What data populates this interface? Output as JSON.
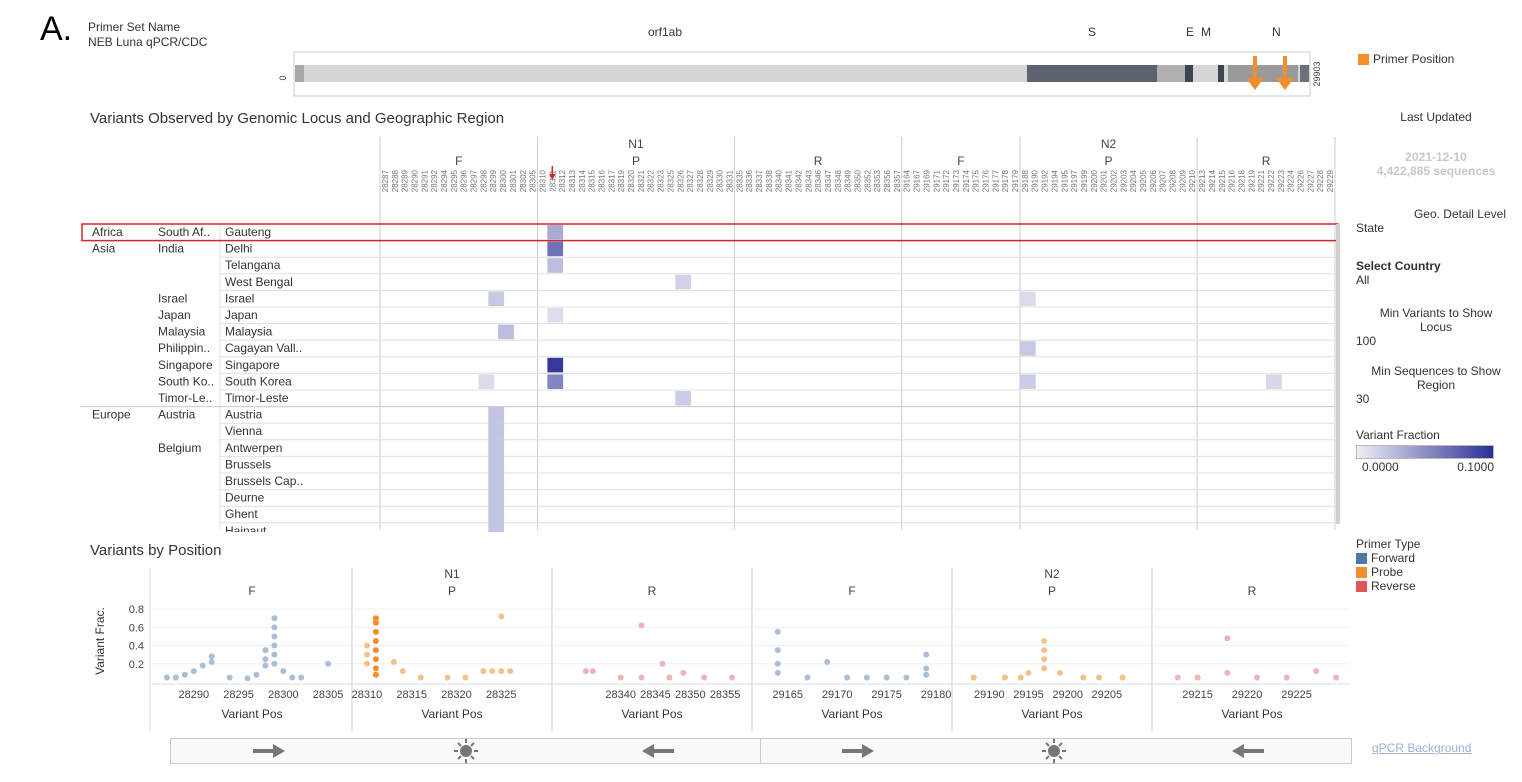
{
  "panel_label": "A.",
  "primer_set": {
    "label": "Primer Set Name",
    "value": "NEB Luna qPCR/CDC"
  },
  "genome": {
    "start": "0",
    "end": "29903",
    "genes": [
      "orf1ab",
      "S",
      "E",
      "M",
      "N"
    ],
    "legend": "Primer Position"
  },
  "heatmap": {
    "title": "Variants Observed by Genomic Locus and Geographic Region",
    "groups": [
      {
        "name": "N1",
        "parts": [
          "F",
          "P",
          "R"
        ]
      },
      {
        "name": "N2",
        "parts": [
          "F",
          "P",
          "R"
        ]
      }
    ],
    "positions": [
      "28287",
      "28288",
      "28289",
      "28290",
      "28291",
      "28292",
      "28294",
      "28295",
      "28296",
      "28297",
      "28298",
      "28299",
      "28300",
      "28301",
      "28302",
      "28305",
      "28310",
      "28311",
      "28312",
      "28313",
      "28314",
      "28315",
      "28316",
      "28317",
      "28319",
      "28320",
      "28321",
      "28322",
      "28323",
      "28325",
      "28326",
      "28327",
      "28328",
      "28329",
      "28330",
      "28331",
      "28335",
      "28336",
      "28337",
      "28338",
      "28340",
      "28341",
      "28342",
      "28343",
      "28346",
      "28347",
      "28348",
      "28349",
      "28350",
      "28352",
      "28353",
      "28356",
      "28357",
      "29164",
      "29167",
      "29169",
      "29171",
      "29172",
      "29173",
      "29174",
      "29175",
      "29176",
      "29177",
      "29178",
      "29179",
      "29188",
      "29190",
      "29192",
      "29194",
      "29195",
      "29197",
      "29199",
      "29200",
      "29201",
      "29202",
      "29203",
      "29204",
      "29205",
      "29206",
      "29207",
      "29208",
      "29209",
      "29210",
      "29213",
      "29214",
      "29215",
      "29216",
      "29218",
      "29219",
      "29221",
      "29222",
      "29223",
      "29224",
      "29226",
      "29227",
      "29228",
      "29229"
    ],
    "rows": [
      {
        "continent": "Africa",
        "country": "South Af..",
        "state": "Gauteng"
      },
      {
        "continent": "Asia",
        "country": "India",
        "state": "Delhi"
      },
      {
        "continent": "",
        "country": "",
        "state": "Telangana"
      },
      {
        "continent": "",
        "country": "",
        "state": "West Bengal"
      },
      {
        "continent": "",
        "country": "Israel",
        "state": "Israel"
      },
      {
        "continent": "",
        "country": "Japan",
        "state": "Japan"
      },
      {
        "continent": "",
        "country": "Malaysia",
        "state": "Malaysia"
      },
      {
        "continent": "",
        "country": "Philippin..",
        "state": "Cagayan Vall.."
      },
      {
        "continent": "",
        "country": "Singapore",
        "state": "Singapore"
      },
      {
        "continent": "",
        "country": "South Ko..",
        "state": "South Korea"
      },
      {
        "continent": "",
        "country": "Timor-Le..",
        "state": "Timor-Leste"
      },
      {
        "continent": "Europe",
        "country": "Austria",
        "state": "Austria"
      },
      {
        "continent": "",
        "country": "",
        "state": "Vienna"
      },
      {
        "continent": "",
        "country": "Belgium",
        "state": "Antwerpen"
      },
      {
        "continent": "",
        "country": "",
        "state": "Brussels"
      },
      {
        "continent": "",
        "country": "",
        "state": "Brussels Cap.."
      },
      {
        "continent": "",
        "country": "",
        "state": "Deurne"
      },
      {
        "continent": "",
        "country": "",
        "state": "Ghent"
      },
      {
        "continent": "",
        "country": "",
        "state": "Hainaut"
      }
    ]
  },
  "sidebar": {
    "last_updated_label": "Last Updated",
    "date": "2021-12-10",
    "sequences": "4,422,885 sequences",
    "geo_label": "Geo. Detail Level",
    "geo_value": "State",
    "country_label": "Select Country",
    "country_value": "All",
    "min_variants_label": "Min Variants to Show Locus",
    "min_variants_value": "100",
    "min_sequences_label": "Min Sequences to Show Region",
    "min_sequences_value": "30",
    "variant_fraction_label": "Variant Fraction",
    "vf_min": "0.0000",
    "vf_max": "0.1000",
    "primer_type_label": "Primer Type",
    "primer_types": [
      "Forward",
      "Probe",
      "Reverse"
    ],
    "qpcr_link": "qPCR Background"
  },
  "colors": {
    "forward": "#4e79a7",
    "probe": "#f28e2b",
    "reverse": "#e15759",
    "heat_low": "#eeeef6",
    "heat_high": "#2b2f96",
    "highlight": "#d62728"
  },
  "chart_data": {
    "type": "scatter",
    "title": "Variants by Position",
    "ylabel": "Variant Frac.",
    "xlabel": "Variant Pos",
    "ylim": [
      0,
      0.9
    ],
    "yticks": [
      0.2,
      0.4,
      0.6,
      0.8
    ],
    "panels": [
      {
        "group": "",
        "part": "F",
        "type": "Forward",
        "xlim": [
          28286,
          28307
        ],
        "xticks": [
          28290,
          28295,
          28300,
          28305
        ],
        "points": [
          [
            28287,
            0.05
          ],
          [
            28288,
            0.05
          ],
          [
            28289,
            0.08
          ],
          [
            28290,
            0.12
          ],
          [
            28291,
            0.18
          ],
          [
            28292,
            0.28
          ],
          [
            28292,
            0.22
          ],
          [
            28294,
            0.05
          ],
          [
            28296,
            0.04
          ],
          [
            28297,
            0.08
          ],
          [
            28298,
            0.35
          ],
          [
            28298,
            0.25
          ],
          [
            28298,
            0.18
          ],
          [
            28299,
            0.7
          ],
          [
            28299,
            0.6
          ],
          [
            28299,
            0.5
          ],
          [
            28299,
            0.4
          ],
          [
            28299,
            0.3
          ],
          [
            28299,
            0.2
          ],
          [
            28300,
            0.12
          ],
          [
            28301,
            0.05
          ],
          [
            28302,
            0.05
          ],
          [
            28305,
            0.2
          ]
        ]
      },
      {
        "group": "N1",
        "part": "P",
        "type": "Probe",
        "xlim": [
          28309,
          28330
        ],
        "xticks": [
          28310,
          28315,
          28320,
          28325
        ],
        "points": [
          [
            28310,
            0.4
          ],
          [
            28310,
            0.3
          ],
          [
            28310,
            0.2
          ],
          [
            28311,
            0.7
          ],
          [
            28311,
            0.65
          ],
          [
            28311,
            0.55
          ],
          [
            28311,
            0.45
          ],
          [
            28311,
            0.35
          ],
          [
            28311,
            0.25
          ],
          [
            28311,
            0.15
          ],
          [
            28311,
            0.08
          ],
          [
            28313,
            0.22
          ],
          [
            28314,
            0.12
          ],
          [
            28316,
            0.05
          ],
          [
            28319,
            0.05
          ],
          [
            28321,
            0.05
          ],
          [
            28323,
            0.12
          ],
          [
            28324,
            0.12
          ],
          [
            28325,
            0.72
          ],
          [
            28325,
            0.12
          ],
          [
            28326,
            0.12
          ]
        ]
      },
      {
        "group": "",
        "part": "R",
        "type": "Reverse",
        "xlim": [
          28331,
          28358
        ],
        "xticks": [
          28340,
          28345,
          28350,
          28355
        ],
        "points": [
          [
            28335,
            0.12
          ],
          [
            28336,
            0.12
          ],
          [
            28340,
            0.05
          ],
          [
            28343,
            0.62
          ],
          [
            28343,
            0.05
          ],
          [
            28346,
            0.2
          ],
          [
            28347,
            0.05
          ],
          [
            28349,
            0.1
          ],
          [
            28352,
            0.05
          ],
          [
            28356,
            0.05
          ]
        ]
      },
      {
        "group": "",
        "part": "F",
        "type": "Forward",
        "xlim": [
          29162,
          29181
        ],
        "xticks": [
          29165,
          29170,
          29175,
          29180
        ],
        "points": [
          [
            29164,
            0.55
          ],
          [
            29164,
            0.35
          ],
          [
            29164,
            0.2
          ],
          [
            29164,
            0.1
          ],
          [
            29167,
            0.05
          ],
          [
            29169,
            0.22
          ],
          [
            29171,
            0.05
          ],
          [
            29173,
            0.05
          ],
          [
            29175,
            0.05
          ],
          [
            29177,
            0.05
          ],
          [
            29179,
            0.3
          ],
          [
            29179,
            0.15
          ],
          [
            29179,
            0.08
          ]
        ]
      },
      {
        "group": "N2",
        "part": "P",
        "type": "Probe",
        "xlim": [
          29186,
          29210
        ],
        "xticks": [
          29190,
          29195,
          29200,
          29205
        ],
        "points": [
          [
            29188,
            0.05
          ],
          [
            29192,
            0.05
          ],
          [
            29194,
            0.05
          ],
          [
            29195,
            0.1
          ],
          [
            29197,
            0.45
          ],
          [
            29197,
            0.35
          ],
          [
            29197,
            0.25
          ],
          [
            29197,
            0.15
          ],
          [
            29199,
            0.1
          ],
          [
            29202,
            0.05
          ],
          [
            29204,
            0.05
          ],
          [
            29207,
            0.05
          ]
        ]
      },
      {
        "group": "",
        "part": "R",
        "type": "Reverse",
        "xlim": [
          29211,
          29230
        ],
        "xticks": [
          29215,
          29220,
          29225
        ],
        "points": [
          [
            29213,
            0.05
          ],
          [
            29215,
            0.05
          ],
          [
            29218,
            0.48
          ],
          [
            29218,
            0.1
          ],
          [
            29221,
            0.05
          ],
          [
            29224,
            0.05
          ],
          [
            29227,
            0.12
          ],
          [
            29229,
            0.05
          ]
        ]
      }
    ]
  }
}
